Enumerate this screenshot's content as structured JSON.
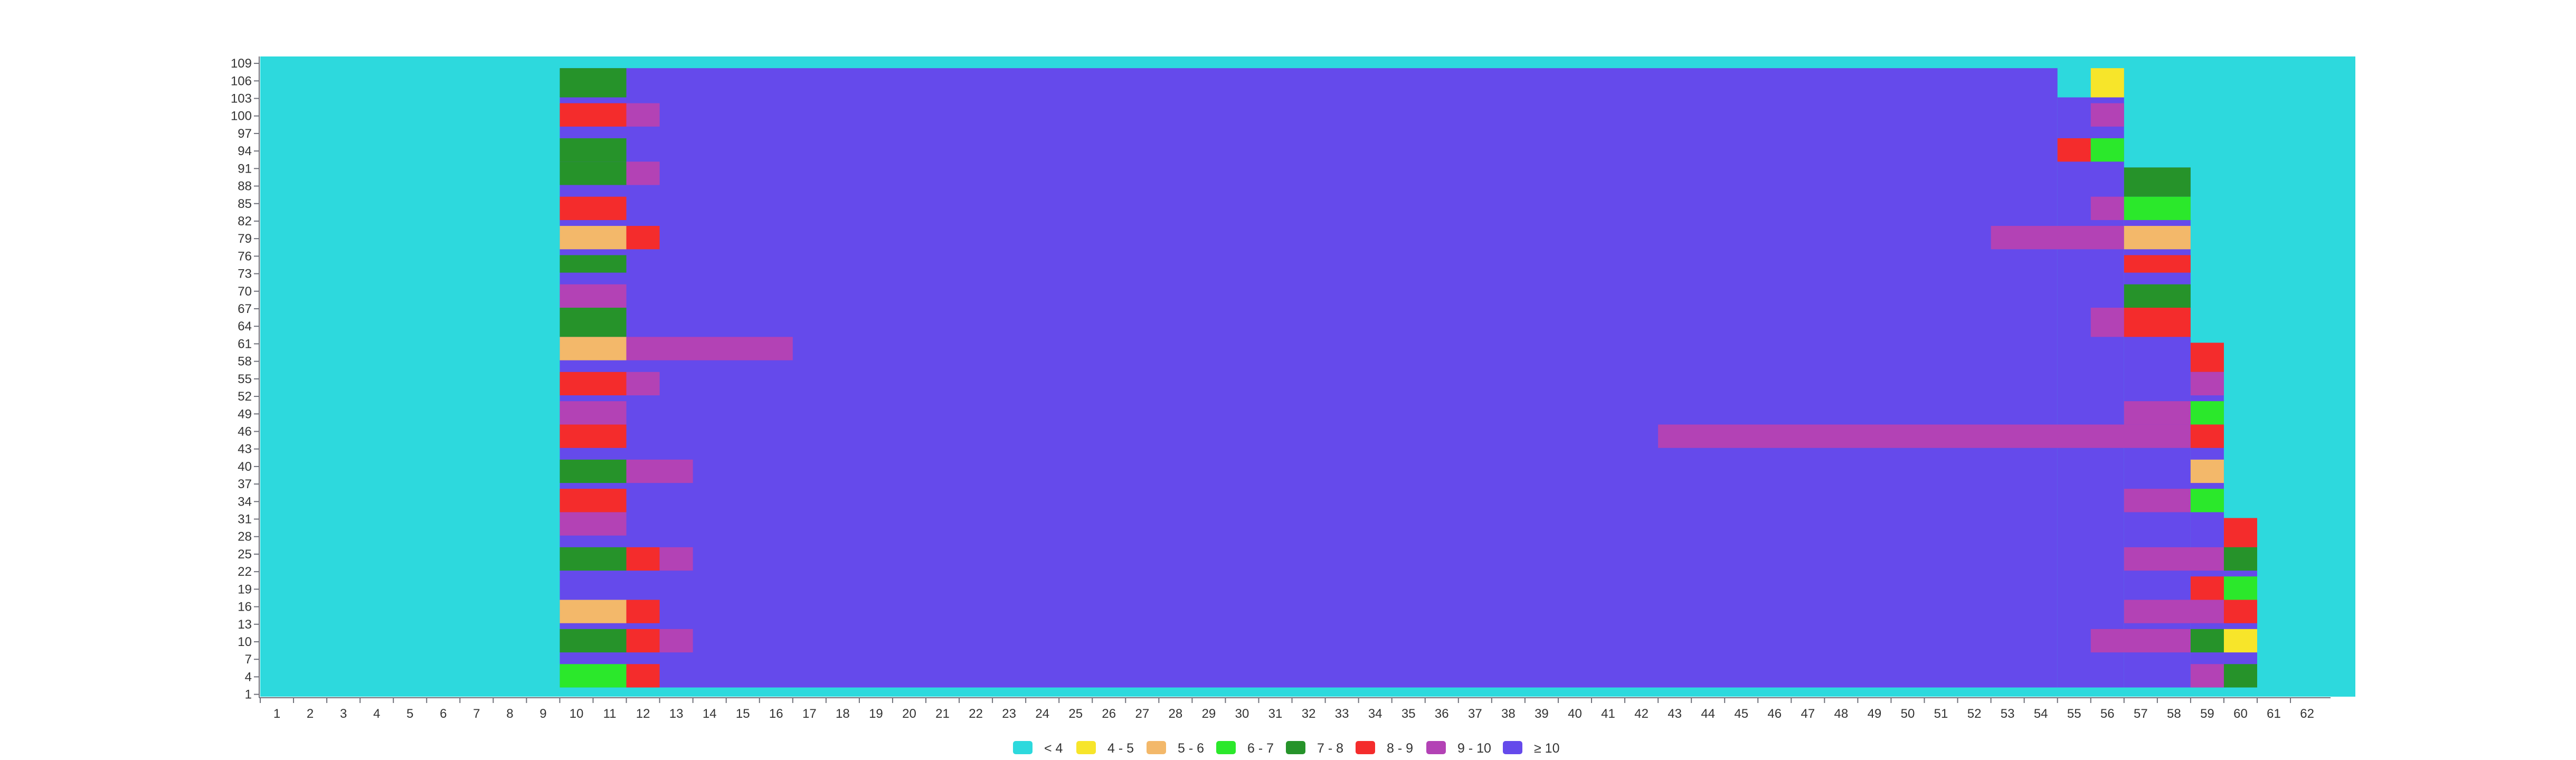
{
  "chart_data": {
    "type": "heatmap",
    "x_ticks": [
      "1",
      "2",
      "3",
      "4",
      "5",
      "6",
      "7",
      "8",
      "9",
      "10",
      "11",
      "12",
      "13",
      "14",
      "15",
      "16",
      "17",
      "18",
      "19",
      "20",
      "21",
      "22",
      "23",
      "24",
      "25",
      "26",
      "27",
      "28",
      "29",
      "30",
      "31",
      "32",
      "33",
      "34",
      "35",
      "36",
      "37",
      "38",
      "39",
      "40",
      "41",
      "42",
      "43",
      "44",
      "45",
      "46",
      "47",
      "48",
      "49",
      "50",
      "51",
      "52",
      "53",
      "54",
      "55",
      "56",
      "57",
      "58",
      "59",
      "60",
      "61",
      "62"
    ],
    "y_ticks": [
      "1",
      "4",
      "7",
      "10",
      "13",
      "16",
      "19",
      "22",
      "25",
      "28",
      "31",
      "34",
      "37",
      "40",
      "43",
      "46",
      "49",
      "52",
      "55",
      "58",
      "61",
      "64",
      "67",
      "70",
      "73",
      "76",
      "79",
      "82",
      "85",
      "88",
      "91",
      "94",
      "97",
      "100",
      "103",
      "106",
      "109"
    ],
    "xlim": [
      1,
      62
    ],
    "ylim": [
      1,
      109
    ],
    "grid": false,
    "legend_position": "bottom-center",
    "default_bin": "< 4",
    "bins": [
      {
        "label": "< 4",
        "color": "#2dd9dd"
      },
      {
        "label": "4 - 5",
        "color": "#f7e52a"
      },
      {
        "label": "5 - 6",
        "color": "#f3b86a"
      },
      {
        "label": "6 - 7",
        "color": "#2be82b"
      },
      {
        "label": "7 - 8",
        "color": "#26932a"
      },
      {
        "label": "8 - 9",
        "color": "#f42c2c"
      },
      {
        "label": "9 - 10",
        "color": "#b342b5"
      },
      {
        "label": "≥ 10",
        "color": "#654aeb"
      }
    ],
    "cells": [
      {
        "x0": 10,
        "x1": 55,
        "y0": 2,
        "y1": 108,
        "bin": "≥ 10"
      },
      {
        "x0": 55,
        "x1": 57,
        "y0": 2,
        "y1": 103,
        "bin": "≥ 10"
      },
      {
        "x0": 57,
        "x1": 59,
        "y0": 2,
        "y1": 91,
        "bin": "≥ 10"
      },
      {
        "x0": 59,
        "x1": 60,
        "y0": 2,
        "y1": 61,
        "bin": "≥ 10"
      },
      {
        "x0": 60,
        "x1": 61,
        "y0": 2,
        "y1": 31,
        "bin": "≥ 10"
      },
      {
        "x0": 10,
        "x1": 12,
        "y0": 103,
        "y1": 108,
        "bin": "7 - 8"
      },
      {
        "x0": 10,
        "x1": 12,
        "y0": 98,
        "y1": 102,
        "bin": "8 - 9"
      },
      {
        "x0": 12,
        "x1": 13,
        "y0": 98,
        "y1": 102,
        "bin": "9 - 10"
      },
      {
        "x0": 10,
        "x1": 12,
        "y0": 92,
        "y1": 96,
        "bin": "7 - 8"
      },
      {
        "x0": 10,
        "x1": 12,
        "y0": 88,
        "y1": 92,
        "bin": "7 - 8"
      },
      {
        "x0": 12,
        "x1": 13,
        "y0": 88,
        "y1": 92,
        "bin": "9 - 10"
      },
      {
        "x0": 10,
        "x1": 12,
        "y0": 82,
        "y1": 86,
        "bin": "8 - 9"
      },
      {
        "x0": 10,
        "x1": 12,
        "y0": 77,
        "y1": 81,
        "bin": "5 - 6"
      },
      {
        "x0": 12,
        "x1": 13,
        "y0": 77,
        "y1": 81,
        "bin": "8 - 9"
      },
      {
        "x0": 10,
        "x1": 12,
        "y0": 73,
        "y1": 76,
        "bin": "7 - 8"
      },
      {
        "x0": 10,
        "x1": 12,
        "y0": 67,
        "y1": 71,
        "bin": "9 - 10"
      },
      {
        "x0": 10,
        "x1": 12,
        "y0": 62,
        "y1": 67,
        "bin": "7 - 8"
      },
      {
        "x0": 10,
        "x1": 12,
        "y0": 58,
        "y1": 62,
        "bin": "5 - 6"
      },
      {
        "x0": 12,
        "x1": 17,
        "y0": 58,
        "y1": 62,
        "bin": "9 - 10"
      },
      {
        "x0": 10,
        "x1": 12,
        "y0": 52,
        "y1": 56,
        "bin": "8 - 9"
      },
      {
        "x0": 12,
        "x1": 13,
        "y0": 52,
        "y1": 56,
        "bin": "9 - 10"
      },
      {
        "x0": 10,
        "x1": 12,
        "y0": 47,
        "y1": 51,
        "bin": "9 - 10"
      },
      {
        "x0": 10,
        "x1": 12,
        "y0": 43,
        "y1": 47,
        "bin": "8 - 9"
      },
      {
        "x0": 10,
        "x1": 12,
        "y0": 37,
        "y1": 41,
        "bin": "7 - 8"
      },
      {
        "x0": 12,
        "x1": 14,
        "y0": 37,
        "y1": 41,
        "bin": "9 - 10"
      },
      {
        "x0": 10,
        "x1": 12,
        "y0": 32,
        "y1": 36,
        "bin": "8 - 9"
      },
      {
        "x0": 10,
        "x1": 12,
        "y0": 28,
        "y1": 32,
        "bin": "9 - 10"
      },
      {
        "x0": 10,
        "x1": 12,
        "y0": 22,
        "y1": 26,
        "bin": "7 - 8"
      },
      {
        "x0": 12,
        "x1": 13,
        "y0": 22,
        "y1": 26,
        "bin": "8 - 9"
      },
      {
        "x0": 13,
        "x1": 14,
        "y0": 22,
        "y1": 26,
        "bin": "9 - 10"
      },
      {
        "x0": 10,
        "x1": 12,
        "y0": 13,
        "y1": 17,
        "bin": "5 - 6"
      },
      {
        "x0": 12,
        "x1": 13,
        "y0": 13,
        "y1": 17,
        "bin": "8 - 9"
      },
      {
        "x0": 10,
        "x1": 12,
        "y0": 8,
        "y1": 12,
        "bin": "7 - 8"
      },
      {
        "x0": 12,
        "x1": 13,
        "y0": 8,
        "y1": 12,
        "bin": "8 - 9"
      },
      {
        "x0": 13,
        "x1": 14,
        "y0": 8,
        "y1": 12,
        "bin": "9 - 10"
      },
      {
        "x0": 10,
        "x1": 12,
        "y0": 2,
        "y1": 6,
        "bin": "6 - 7"
      },
      {
        "x0": 12,
        "x1": 13,
        "y0": 2,
        "y1": 6,
        "bin": "8 - 9"
      },
      {
        "x0": 56,
        "x1": 57,
        "y0": 103,
        "y1": 108,
        "bin": "4 - 5"
      },
      {
        "x0": 56,
        "x1": 57,
        "y0": 98,
        "y1": 102,
        "bin": "9 - 10"
      },
      {
        "x0": 55,
        "x1": 56,
        "y0": 92,
        "y1": 96,
        "bin": "8 - 9"
      },
      {
        "x0": 56,
        "x1": 57,
        "y0": 92,
        "y1": 96,
        "bin": "6 - 7"
      },
      {
        "x0": 57,
        "x1": 59,
        "y0": 86,
        "y1": 91,
        "bin": "7 - 8"
      },
      {
        "x0": 56,
        "x1": 57,
        "y0": 82,
        "y1": 86,
        "bin": "9 - 10"
      },
      {
        "x0": 57,
        "x1": 59,
        "y0": 82,
        "y1": 86,
        "bin": "6 - 7"
      },
      {
        "x0": 53,
        "x1": 57,
        "y0": 77,
        "y1": 81,
        "bin": "9 - 10"
      },
      {
        "x0": 57,
        "x1": 59,
        "y0": 77,
        "y1": 81,
        "bin": "5 - 6"
      },
      {
        "x0": 57,
        "x1": 59,
        "y0": 73,
        "y1": 76,
        "bin": "8 - 9"
      },
      {
        "x0": 57,
        "x1": 59,
        "y0": 67,
        "y1": 71,
        "bin": "7 - 8"
      },
      {
        "x0": 56,
        "x1": 57,
        "y0": 62,
        "y1": 67,
        "bin": "9 - 10"
      },
      {
        "x0": 57,
        "x1": 59,
        "y0": 62,
        "y1": 67,
        "bin": "8 - 9"
      },
      {
        "x0": 59,
        "x1": 60,
        "y0": 56,
        "y1": 61,
        "bin": "8 - 9"
      },
      {
        "x0": 59,
        "x1": 60,
        "y0": 52,
        "y1": 56,
        "bin": "9 - 10"
      },
      {
        "x0": 57,
        "x1": 59,
        "y0": 47,
        "y1": 51,
        "bin": "9 - 10"
      },
      {
        "x0": 59,
        "x1": 60,
        "y0": 47,
        "y1": 51,
        "bin": "6 - 7"
      },
      {
        "x0": 43,
        "x1": 59,
        "y0": 43,
        "y1": 47,
        "bin": "9 - 10"
      },
      {
        "x0": 59,
        "x1": 60,
        "y0": 43,
        "y1": 47,
        "bin": "8 - 9"
      },
      {
        "x0": 59,
        "x1": 60,
        "y0": 37,
        "y1": 41,
        "bin": "5 - 6"
      },
      {
        "x0": 57,
        "x1": 59,
        "y0": 32,
        "y1": 36,
        "bin": "9 - 10"
      },
      {
        "x0": 59,
        "x1": 60,
        "y0": 32,
        "y1": 36,
        "bin": "6 - 7"
      },
      {
        "x0": 60,
        "x1": 61,
        "y0": 26,
        "y1": 31,
        "bin": "8 - 9"
      },
      {
        "x0": 57,
        "x1": 60,
        "y0": 22,
        "y1": 26,
        "bin": "9 - 10"
      },
      {
        "x0": 60,
        "x1": 61,
        "y0": 22,
        "y1": 26,
        "bin": "7 - 8"
      },
      {
        "x0": 59,
        "x1": 60,
        "y0": 17,
        "y1": 21,
        "bin": "8 - 9"
      },
      {
        "x0": 60,
        "x1": 61,
        "y0": 17,
        "y1": 21,
        "bin": "6 - 7"
      },
      {
        "x0": 57,
        "x1": 60,
        "y0": 13,
        "y1": 17,
        "bin": "9 - 10"
      },
      {
        "x0": 60,
        "x1": 61,
        "y0": 13,
        "y1": 17,
        "bin": "8 - 9"
      },
      {
        "x0": 56,
        "x1": 59,
        "y0": 8,
        "y1": 12,
        "bin": "9 - 10"
      },
      {
        "x0": 59,
        "x1": 60,
        "y0": 8,
        "y1": 12,
        "bin": "7 - 8"
      },
      {
        "x0": 60,
        "x1": 61,
        "y0": 8,
        "y1": 12,
        "bin": "4 - 5"
      },
      {
        "x0": 59,
        "x1": 60,
        "y0": 2,
        "y1": 6,
        "bin": "9 - 10"
      },
      {
        "x0": 60,
        "x1": 61,
        "y0": 2,
        "y1": 6,
        "bin": "7 - 8"
      }
    ]
  }
}
